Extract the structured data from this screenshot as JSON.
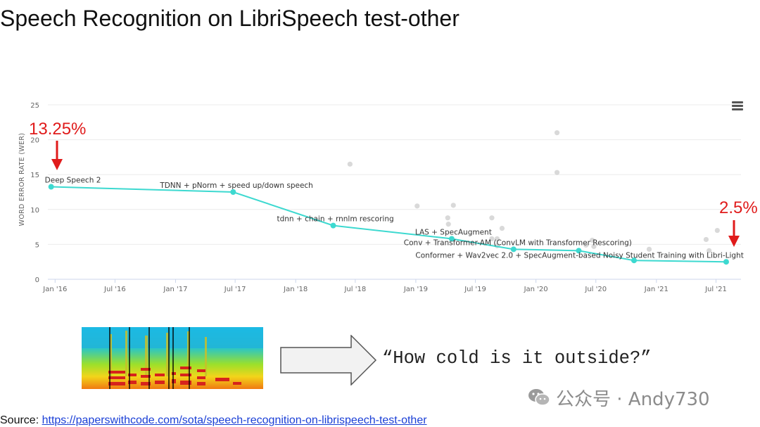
{
  "slide": {
    "title": "Speech Recognition on LibriSpeech test-other",
    "transcript": "“How cold is it outside?”",
    "source_label": "Source: ",
    "source_url": "https://paperswithcode.com/sota/speech-recognition-on-librispeech-test-other",
    "watermark": "公众号 · Andy730"
  },
  "callouts": {
    "start": "13.25%",
    "end": "2.5%"
  },
  "colors": {
    "sota_line": "#3dd9d0",
    "other_points": "#d9d9d9",
    "callout": "#e01b1b",
    "grid": "#ebebeb"
  },
  "icons": {
    "menu": "hamburger-menu-icon",
    "arrow": "right-arrow-icon",
    "spectrogram": "spectrogram-image",
    "watermark": "wechat-icon"
  },
  "chart_data": {
    "type": "scatter",
    "ylabel": "WORD ERROR RATE (WER)",
    "ylim": [
      0,
      25
    ],
    "yticks": [
      0,
      5,
      10,
      15,
      20,
      25
    ],
    "xlim": [
      "2015-12-10",
      "2021-09-15"
    ],
    "xticks": [
      {
        "date": "2016-01-01",
        "label": "Jan '16"
      },
      {
        "date": "2016-07-01",
        "label": "Jul '16"
      },
      {
        "date": "2017-01-01",
        "label": "Jan '17"
      },
      {
        "date": "2017-07-01",
        "label": "Jul '17"
      },
      {
        "date": "2018-01-01",
        "label": "Jan '18"
      },
      {
        "date": "2018-07-01",
        "label": "Jul '18"
      },
      {
        "date": "2019-01-01",
        "label": "Jan '19"
      },
      {
        "date": "2019-07-01",
        "label": "Jul '19"
      },
      {
        "date": "2020-01-01",
        "label": "Jan '20"
      },
      {
        "date": "2020-07-01",
        "label": "Jul '20"
      },
      {
        "date": "2021-01-01",
        "label": "Jan '21"
      },
      {
        "date": "2021-07-01",
        "label": "Jul '21"
      }
    ],
    "grid": true,
    "series": [
      {
        "points": [
          {
            "x": "2015-12-20",
            "y": 13.25,
            "label": "Deep Speech 2"
          },
          {
            "x": "2017-06-25",
            "y": 12.5,
            "label": "TDNN + pNorm + speed up/down speech"
          },
          {
            "x": "2018-04-25",
            "y": 7.7,
            "label": "tdnn + chain + rnnlm rescoring"
          },
          {
            "x": "2019-04-20",
            "y": 5.8,
            "label": "LAS + SpecAugment"
          },
          {
            "x": "2019-10-25",
            "y": 4.3,
            "label": "Conv + Transformer-AM (ConvLM with Transformer Rescoring)"
          },
          {
            "x": "2020-05-10",
            "y": 4.1,
            "label": "Conformer + Wav2vec 2.0 + SpecAugment-based Noisy Student Training with Libri-Light"
          },
          {
            "x": "2020-10-25",
            "y": 2.7,
            "label": ""
          },
          {
            "x": "2021-08-01",
            "y": 2.5,
            "label": ""
          }
        ]
      },
      {
        "points": [
          {
            "x": "2018-06-15",
            "y": 16.5
          },
          {
            "x": "2019-01-05",
            "y": 10.5
          },
          {
            "x": "2019-04-25",
            "y": 10.6
          },
          {
            "x": "2019-04-08",
            "y": 8.8
          },
          {
            "x": "2019-04-10",
            "y": 7.9
          },
          {
            "x": "2019-08-20",
            "y": 8.8
          },
          {
            "x": "2019-09-20",
            "y": 7.3
          },
          {
            "x": "2019-08-20",
            "y": 5.8
          },
          {
            "x": "2019-09-05",
            "y": 5.8
          },
          {
            "x": "2019-09-05",
            "y": 4.8
          },
          {
            "x": "2020-03-05",
            "y": 21.0
          },
          {
            "x": "2020-03-05",
            "y": 15.3
          },
          {
            "x": "2020-06-20",
            "y": 5.6
          },
          {
            "x": "2020-06-25",
            "y": 4.7
          },
          {
            "x": "2020-06-01",
            "y": 4.9
          },
          {
            "x": "2020-12-10",
            "y": 4.3
          },
          {
            "x": "2021-06-01",
            "y": 5.7
          },
          {
            "x": "2021-06-10",
            "y": 4.1
          },
          {
            "x": "2021-07-05",
            "y": 7.0
          }
        ]
      }
    ]
  }
}
